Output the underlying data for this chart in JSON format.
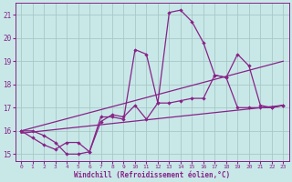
{
  "xlabel": "Windchill (Refroidissement éolien,°C)",
  "background_color": "#c8e8e8",
  "grid_color": "#a8c8c8",
  "line_color": "#882288",
  "xlim": [
    -0.5,
    23.5
  ],
  "ylim": [
    14.7,
    21.5
  ],
  "xticks": [
    0,
    1,
    2,
    3,
    4,
    5,
    6,
    7,
    8,
    9,
    10,
    11,
    12,
    13,
    14,
    15,
    16,
    17,
    18,
    19,
    20,
    21,
    22,
    23
  ],
  "yticks": [
    15,
    16,
    17,
    18,
    19,
    20,
    21
  ],
  "series": [
    {
      "x": [
        0,
        1,
        2,
        3,
        4,
        5,
        6,
        7,
        8,
        9,
        10,
        11,
        12,
        13,
        14,
        15,
        16,
        17,
        18,
        19,
        20,
        21,
        22,
        23
      ],
      "y": [
        16.0,
        16.0,
        15.8,
        15.5,
        15.0,
        15.0,
        15.1,
        16.6,
        16.6,
        16.5,
        19.5,
        19.3,
        17.2,
        21.1,
        21.2,
        20.7,
        19.8,
        18.4,
        18.3,
        19.3,
        18.8,
        17.1,
        17.0,
        17.1
      ],
      "marker": true
    },
    {
      "x": [
        0,
        1,
        2,
        3,
        4,
        5,
        6,
        7,
        8,
        9,
        10,
        11,
        12,
        13,
        14,
        15,
        16,
        17,
        18,
        19,
        20,
        21,
        22,
        23
      ],
      "y": [
        16.0,
        15.7,
        15.4,
        15.2,
        15.5,
        15.5,
        15.1,
        16.4,
        16.7,
        16.6,
        17.1,
        16.5,
        17.2,
        17.2,
        17.3,
        17.4,
        17.4,
        18.4,
        18.3,
        17.0,
        17.0,
        17.0,
        17.0,
        17.1
      ],
      "marker": true
    },
    {
      "x": [
        0,
        23
      ],
      "y": [
        16.0,
        19.0
      ],
      "marker": false
    },
    {
      "x": [
        0,
        23
      ],
      "y": [
        15.9,
        17.1
      ],
      "marker": false
    }
  ]
}
